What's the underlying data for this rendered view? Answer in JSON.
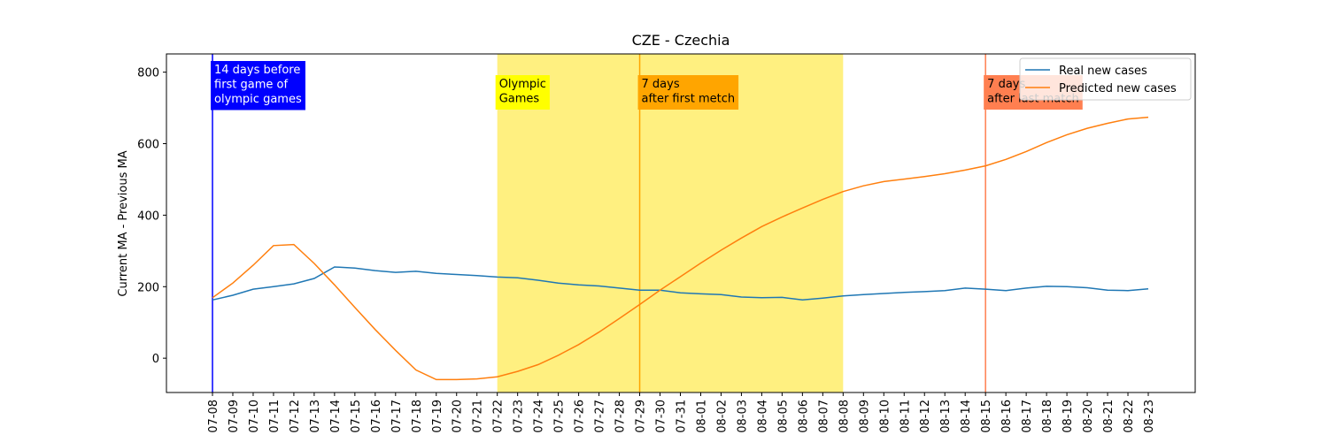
{
  "chart_data": {
    "type": "line",
    "title": "CZE - Czechia",
    "y_label": "Current MA - Previous MA",
    "categories": [
      "07-08",
      "07-09",
      "07-10",
      "07-11",
      "07-12",
      "07-13",
      "07-14",
      "07-15",
      "07-16",
      "07-17",
      "07-18",
      "07-19",
      "07-20",
      "07-21",
      "07-22",
      "07-23",
      "07-24",
      "07-25",
      "07-26",
      "07-27",
      "07-28",
      "07-29",
      "07-30",
      "07-31",
      "08-01",
      "08-02",
      "08-03",
      "08-04",
      "08-05",
      "08-06",
      "08-07",
      "08-08",
      "08-09",
      "08-10",
      "08-11",
      "08-12",
      "08-13",
      "08-14",
      "08-15",
      "08-16",
      "08-17",
      "08-18",
      "08-19",
      "08-20",
      "08-21",
      "08-22",
      "08-23"
    ],
    "series": [
      {
        "name": "Real new cases",
        "color": "#1f77b4",
        "values": [
          163,
          176,
          193,
          200,
          208,
          223,
          255,
          252,
          245,
          240,
          243,
          237,
          234,
          231,
          227,
          225,
          218,
          210,
          205,
          202,
          196,
          190,
          190,
          183,
          180,
          178,
          171,
          169,
          170,
          163,
          168,
          174,
          178,
          181,
          184,
          186,
          189,
          196,
          193,
          189,
          196,
          201,
          200,
          197,
          190,
          189,
          194
        ]
      },
      {
        "name": "Predicted new cases",
        "color": "#ff7f0e",
        "values": [
          169,
          210,
          260,
          315,
          318,
          265,
          205,
          142,
          80,
          22,
          -33,
          -60,
          -60,
          -58,
          -52,
          -37,
          -18,
          8,
          38,
          73,
          111,
          150,
          190,
          228,
          266,
          302,
          336,
          368,
          395,
          420,
          444,
          466,
          482,
          494,
          501,
          508,
          516,
          526,
          538,
          556,
          578,
          603,
          625,
          643,
          657,
          669,
          674
        ]
      }
    ],
    "ylim": [
      -96,
      851
    ],
    "yticks": [
      0,
      200,
      400,
      600,
      800
    ],
    "legend": "upper right",
    "span": {
      "from": "07-22",
      "to": "08-08",
      "color": "#fff080",
      "lines": [
        "Olympic",
        "Games"
      ],
      "box_color": "#ffff00",
      "text_color": "#000000"
    },
    "vlines": [
      {
        "at": "07-08",
        "color": "#0000ff",
        "lines": [
          "14 days before",
          "first game of",
          "olympic games"
        ],
        "text_color": "#ffffff"
      },
      {
        "at": "07-29",
        "color": "#ffa500",
        "lines": [
          "7 days",
          "after first metch"
        ],
        "text_color": "#000000"
      },
      {
        "at": "08-15",
        "color": "#ff7f50",
        "lines": [
          "7 days",
          "after last match"
        ],
        "text_color": "#000000"
      }
    ]
  }
}
